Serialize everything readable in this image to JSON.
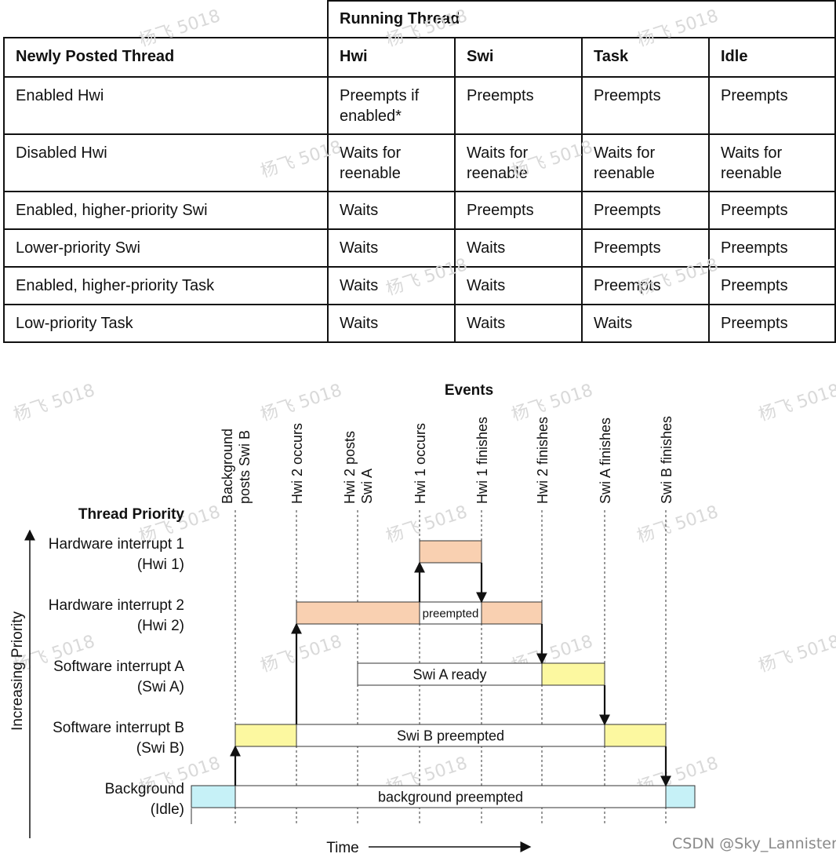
{
  "table": {
    "header_group": "Running Thread",
    "row_header_label": "Newly Posted Thread",
    "columns": [
      "Hwi",
      "Swi",
      "Task",
      "Idle"
    ],
    "rows": [
      {
        "thread": "Enabled Hwi",
        "cells": [
          "Preempts if\nenabled*",
          "Preempts",
          "Preempts",
          "Preempts"
        ]
      },
      {
        "thread": "Disabled Hwi",
        "cells": [
          "Waits for\nreenable",
          "Waits for\nreenable",
          "Waits for\nreenable",
          "Waits for\nreenable"
        ]
      },
      {
        "thread": "Enabled, higher-priority Swi",
        "cells": [
          "Waits",
          "Preempts",
          "Preempts",
          "Preempts"
        ]
      },
      {
        "thread": "Lower-priority Swi",
        "cells": [
          "Waits",
          "Waits",
          "Preempts",
          "Preempts"
        ]
      },
      {
        "thread": "Enabled, higher-priority Task",
        "cells": [
          "Waits",
          "Waits",
          "Preempts",
          "Preempts"
        ]
      },
      {
        "thread": "Low-priority Task",
        "cells": [
          "Waits",
          "Waits",
          "Waits",
          "Preempts"
        ]
      }
    ]
  },
  "diagram": {
    "events_title": "Events",
    "priority_title": "Thread Priority",
    "y_axis_label": "Increasing Priority",
    "x_axis_label": "Time",
    "events": [
      "Background\nposts Swi B",
      "Hwi 2 occurs",
      "Hwi 2 posts\nSwi A",
      "Hwi 1 occurs",
      "Hwi 1 finishes",
      "Hwi 2 finishes",
      "Swi A finishes",
      "Swi B finishes"
    ],
    "threads": [
      {
        "name": "Hardware interrupt 1",
        "short": "(Hwi 1)"
      },
      {
        "name": "Hardware interrupt 2",
        "short": "(Hwi 2)"
      },
      {
        "name": "Software interrupt A",
        "short": "(Swi A)"
      },
      {
        "name": "Software interrupt B",
        "short": "(Swi B)"
      },
      {
        "name": "Background",
        "short": "(Idle)"
      }
    ],
    "segments": [
      {
        "thread": 0,
        "start": 3,
        "end": 4,
        "state": "running"
      },
      {
        "thread": 1,
        "start": 1,
        "end": 3,
        "state": "running"
      },
      {
        "thread": 1,
        "start": 3,
        "end": 4,
        "state": "waiting",
        "label": "preempted"
      },
      {
        "thread": 1,
        "start": 4,
        "end": 5,
        "state": "running"
      },
      {
        "thread": 2,
        "start": 2,
        "end": 5,
        "state": "waiting",
        "label": "Swi A ready"
      },
      {
        "thread": 2,
        "start": 5,
        "end": 6,
        "state": "running"
      },
      {
        "thread": 3,
        "start": 0,
        "end": 1,
        "state": "running"
      },
      {
        "thread": 3,
        "start": 1,
        "end": 6,
        "state": "waiting",
        "label": "Swi B preempted"
      },
      {
        "thread": 3,
        "start": 6,
        "end": 7,
        "state": "running"
      },
      {
        "thread": 4,
        "start": -1,
        "end": 0,
        "state": "running"
      },
      {
        "thread": 4,
        "start": 0,
        "end": 7,
        "state": "waiting",
        "label": "background preempted"
      },
      {
        "thread": 4,
        "start": 7,
        "end": 8,
        "state": "running"
      }
    ],
    "arrows": [
      {
        "event": 0,
        "from": 4,
        "to": 3
      },
      {
        "event": 1,
        "from": 3,
        "to": 1
      },
      {
        "event": 3,
        "from": 1,
        "to": 0
      },
      {
        "event": 4,
        "from": 0,
        "to": 1
      },
      {
        "event": 5,
        "from": 1,
        "to": 2
      },
      {
        "event": 6,
        "from": 2,
        "to": 3
      },
      {
        "event": 7,
        "from": 3,
        "to": 4
      }
    ],
    "colors": {
      "hwi": "#f9d0b1",
      "swi": "#fcf8a0",
      "idle": "#c6f1f7",
      "waiting": "#ffffff",
      "line": "#111111"
    }
  },
  "watermark": "杨飞 5018",
  "credit": "CSDN @Sky_Lannister"
}
